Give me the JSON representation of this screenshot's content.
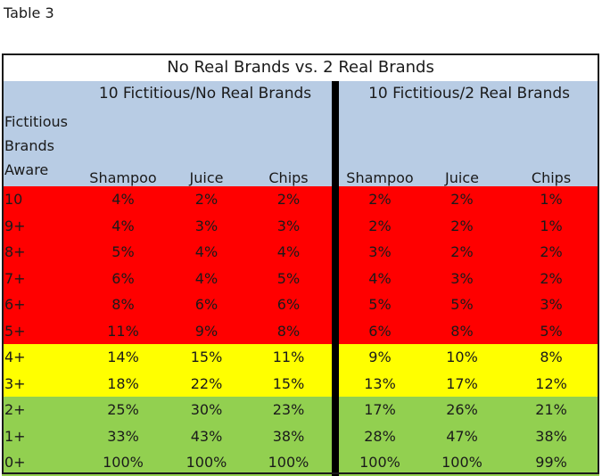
{
  "caption": "Table 3",
  "title": "No Real Brands vs. 2 Real Brands",
  "groups": [
    "10 Fictitious/No Real Brands",
    "10 Fictitious/2 Real Brands"
  ],
  "row_header": "Fictitious Brands Aware",
  "columns": [
    "Shampoo",
    "Juice",
    "Chips",
    "Shampoo",
    "Juice",
    "Chips"
  ],
  "rows": [
    {
      "label": "10",
      "band": "red",
      "values": [
        "4%",
        "2%",
        "2%",
        "2%",
        "2%",
        "1%"
      ]
    },
    {
      "label": "9+",
      "band": "red",
      "values": [
        "4%",
        "3%",
        "3%",
        "2%",
        "2%",
        "1%"
      ]
    },
    {
      "label": "8+",
      "band": "red",
      "values": [
        "5%",
        "4%",
        "4%",
        "3%",
        "2%",
        "2%"
      ]
    },
    {
      "label": "7+",
      "band": "red",
      "values": [
        "6%",
        "4%",
        "5%",
        "4%",
        "3%",
        "2%"
      ]
    },
    {
      "label": "6+",
      "band": "red",
      "values": [
        "8%",
        "6%",
        "6%",
        "5%",
        "5%",
        "3%"
      ]
    },
    {
      "label": "5+",
      "band": "red",
      "values": [
        "11%",
        "9%",
        "8%",
        "6%",
        "8%",
        "5%"
      ]
    },
    {
      "label": "4+",
      "band": "yellow",
      "values": [
        "14%",
        "15%",
        "11%",
        "9%",
        "10%",
        "8%"
      ]
    },
    {
      "label": "3+",
      "band": "yellow",
      "values": [
        "18%",
        "22%",
        "15%",
        "13%",
        "17%",
        "12%"
      ]
    },
    {
      "label": "2+",
      "band": "green",
      "values": [
        "25%",
        "30%",
        "23%",
        "17%",
        "26%",
        "21%"
      ]
    },
    {
      "label": "1+",
      "band": "green",
      "values": [
        "33%",
        "43%",
        "38%",
        "28%",
        "47%",
        "38%"
      ]
    },
    {
      "label": "0+",
      "band": "green",
      "values": [
        "100%",
        "100%",
        "100%",
        "100%",
        "100%",
        "99%"
      ]
    }
  ]
}
